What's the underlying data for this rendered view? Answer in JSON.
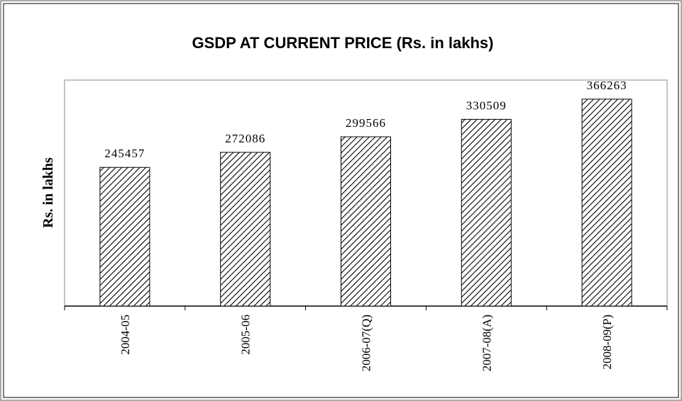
{
  "chart_data": {
    "type": "bar",
    "title": "GSDP AT CURRENT PRICE (Rs. in lakhs)",
    "y_label": "Rs. in lakhs",
    "categories": [
      "2004-05",
      "2005-06",
      "2006-07(Q)",
      "2007-08(A)",
      "2008-09(P)"
    ],
    "values": [
      245457,
      272086,
      299566,
      330509,
      366263
    ],
    "color": "#000000",
    "ylim": [
      0,
      400000
    ],
    "grid": false
  }
}
